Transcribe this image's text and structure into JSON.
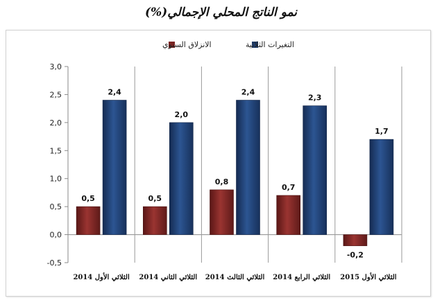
{
  "chart_data": {
    "type": "bar",
    "title": "نمو الناتج المحلي الإجمالي(%)",
    "categories": [
      "الثلاثي الأول 2014",
      "الثلاثي الثاني 2014",
      "الثلاثي الثالث 2014",
      "الثلاثي الرابع 2014",
      "الثلاثي الأول 2015"
    ],
    "series": [
      {
        "name": "الانزلاق السنوي",
        "color": "#7b2422",
        "values": [
          0.5,
          0.5,
          0.8,
          0.7,
          -0.2
        ],
        "labels": [
          "0,5",
          "0,5",
          "0,8",
          "0,7",
          "-0,2"
        ]
      },
      {
        "name": "التغيرات الثلاثية",
        "color": "#1f3d6c",
        "values": [
          2.4,
          2.0,
          2.4,
          2.3,
          1.7
        ],
        "labels": [
          "2,4",
          "2,0",
          "2,4",
          "2,3",
          "1,7"
        ]
      }
    ],
    "yticks": [
      -0.5,
      0.0,
      0.5,
      1.0,
      1.5,
      2.0,
      2.5,
      3.0
    ],
    "ytick_labels": [
      "-0,5",
      "0,0",
      "0,5",
      "1,0",
      "1,5",
      "2,0",
      "2,5",
      "3,0"
    ],
    "ylim": [
      -0.5,
      3.0
    ],
    "legend_position": "top",
    "grid": "vertical separators between categories"
  }
}
